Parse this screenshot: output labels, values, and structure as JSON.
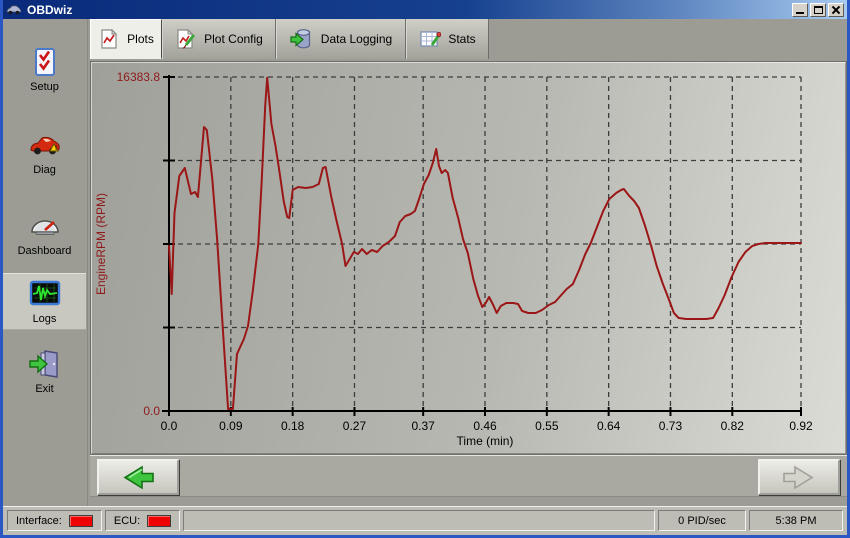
{
  "window": {
    "title": "OBDwiz"
  },
  "sidebar": {
    "items": [
      {
        "label": "Setup",
        "icon": "checklist-icon",
        "selected": false
      },
      {
        "label": "Diag",
        "icon": "car-icon",
        "selected": false
      },
      {
        "label": "Dashboard",
        "icon": "gauge-icon",
        "selected": false
      },
      {
        "label": "Logs",
        "icon": "waveform-icon",
        "selected": true
      },
      {
        "label": "Exit",
        "icon": "exit-door-icon",
        "selected": false
      }
    ]
  },
  "tabs": [
    {
      "label": "Plots",
      "icon": "chart-page-icon",
      "selected": true
    },
    {
      "label": "Plot Config",
      "icon": "chart-edit-icon",
      "selected": false
    },
    {
      "label": "Data Logging",
      "icon": "database-export-icon",
      "selected": false
    },
    {
      "label": "Stats",
      "icon": "stats-edit-icon",
      "selected": false
    }
  ],
  "nav": {
    "back_enabled": true,
    "forward_enabled": false
  },
  "status_bar": {
    "interface_label": "Interface:",
    "interface_led_color": "#ee0202",
    "ecu_label": "ECU:",
    "ecu_led_color": "#ee0202",
    "pid_rate": "0 PID/sec",
    "clock": "5:38 PM"
  },
  "chart_data": {
    "type": "line",
    "xlabel": "Time (min)",
    "ylabel": "EngineRPM (RPM)",
    "xlim": [
      0,
      0.92
    ],
    "ylim": [
      0,
      16383.8
    ],
    "x_ticks": [
      0,
      0.09,
      0.18,
      0.27,
      0.37,
      0.46,
      0.55,
      0.64,
      0.73,
      0.82,
      0.92
    ],
    "x_tick_labels": [
      "0.0",
      "0.09",
      "0.18",
      "0.27",
      "0.37",
      "0.46",
      "0.55",
      "0.64",
      "0.73",
      "0.82",
      "0.92"
    ],
    "y_tick_labels": [
      "0.0",
      "16383.8"
    ],
    "grid": "dashed",
    "legend": "none",
    "line_color": "#9b1616",
    "label_color": "#8f1a1a",
    "points": [
      [
        0.0,
        8094
      ],
      [
        0.004,
        5739
      ],
      [
        0.008,
        9712
      ],
      [
        0.015,
        11527
      ],
      [
        0.023,
        11920
      ],
      [
        0.032,
        10644
      ],
      [
        0.038,
        10742
      ],
      [
        0.042,
        10497
      ],
      [
        0.051,
        13931
      ],
      [
        0.055,
        13784
      ],
      [
        0.063,
        11380
      ],
      [
        0.07,
        8437
      ],
      [
        0.079,
        3679
      ],
      [
        0.086,
        98
      ],
      [
        0.093,
        98
      ],
      [
        0.099,
        2796
      ],
      [
        0.105,
        3237
      ],
      [
        0.109,
        3532
      ],
      [
        0.115,
        4169
      ],
      [
        0.122,
        5886
      ],
      [
        0.13,
        8192
      ],
      [
        0.135,
        11282
      ],
      [
        0.14,
        14961
      ],
      [
        0.143,
        16350
      ],
      [
        0.149,
        14078
      ],
      [
        0.155,
        13000
      ],
      [
        0.16,
        11920
      ],
      [
        0.167,
        10301
      ],
      [
        0.172,
        9516
      ],
      [
        0.175,
        9467
      ],
      [
        0.18,
        10840
      ],
      [
        0.188,
        10988
      ],
      [
        0.199,
        10939
      ],
      [
        0.209,
        10988
      ],
      [
        0.218,
        11135
      ],
      [
        0.224,
        11920
      ],
      [
        0.228,
        11969
      ],
      [
        0.236,
        10546
      ],
      [
        0.244,
        9320
      ],
      [
        0.252,
        8192
      ],
      [
        0.257,
        7113
      ],
      [
        0.263,
        7456
      ],
      [
        0.269,
        7799
      ],
      [
        0.275,
        7701
      ],
      [
        0.281,
        7946
      ],
      [
        0.288,
        7701
      ],
      [
        0.295,
        7897
      ],
      [
        0.303,
        7799
      ],
      [
        0.311,
        8094
      ],
      [
        0.32,
        8290
      ],
      [
        0.329,
        8584
      ],
      [
        0.336,
        9271
      ],
      [
        0.344,
        9565
      ],
      [
        0.352,
        9663
      ],
      [
        0.358,
        9810
      ],
      [
        0.364,
        10399
      ],
      [
        0.371,
        11135
      ],
      [
        0.378,
        11576
      ],
      [
        0.384,
        12165
      ],
      [
        0.389,
        12852
      ],
      [
        0.393,
        12018
      ],
      [
        0.397,
        11675
      ],
      [
        0.402,
        11822
      ],
      [
        0.406,
        11675
      ],
      [
        0.413,
        10448
      ],
      [
        0.421,
        9467
      ],
      [
        0.428,
        8437
      ],
      [
        0.435,
        7750
      ],
      [
        0.443,
        6475
      ],
      [
        0.45,
        5641
      ],
      [
        0.456,
        5101
      ],
      [
        0.461,
        5297
      ],
      [
        0.466,
        5592
      ],
      [
        0.472,
        5199
      ],
      [
        0.477,
        4807
      ],
      [
        0.483,
        5150
      ],
      [
        0.491,
        5297
      ],
      [
        0.501,
        5297
      ],
      [
        0.508,
        5248
      ],
      [
        0.514,
        4905
      ],
      [
        0.523,
        4807
      ],
      [
        0.534,
        4807
      ],
      [
        0.543,
        4954
      ],
      [
        0.553,
        5199
      ],
      [
        0.562,
        5346
      ],
      [
        0.571,
        5690
      ],
      [
        0.579,
        5984
      ],
      [
        0.588,
        6229
      ],
      [
        0.597,
        6916
      ],
      [
        0.606,
        7701
      ],
      [
        0.614,
        8241
      ],
      [
        0.623,
        9026
      ],
      [
        0.632,
        9810
      ],
      [
        0.641,
        10399
      ],
      [
        0.651,
        10693
      ],
      [
        0.658,
        10840
      ],
      [
        0.662,
        10889
      ],
      [
        0.67,
        10546
      ],
      [
        0.677,
        10301
      ],
      [
        0.684,
        9958
      ],
      [
        0.693,
        9075
      ],
      [
        0.702,
        8094
      ],
      [
        0.71,
        7113
      ],
      [
        0.719,
        6229
      ],
      [
        0.728,
        5444
      ],
      [
        0.735,
        4807
      ],
      [
        0.742,
        4561
      ],
      [
        0.753,
        4512
      ],
      [
        0.767,
        4512
      ],
      [
        0.782,
        4512
      ],
      [
        0.792,
        4561
      ],
      [
        0.8,
        5052
      ],
      [
        0.809,
        5690
      ],
      [
        0.819,
        6573
      ],
      [
        0.829,
        7309
      ],
      [
        0.839,
        7799
      ],
      [
        0.849,
        8094
      ],
      [
        0.858,
        8192
      ],
      [
        0.868,
        8241
      ],
      [
        0.883,
        8241
      ],
      [
        0.902,
        8241
      ],
      [
        0.92,
        8241
      ]
    ]
  }
}
